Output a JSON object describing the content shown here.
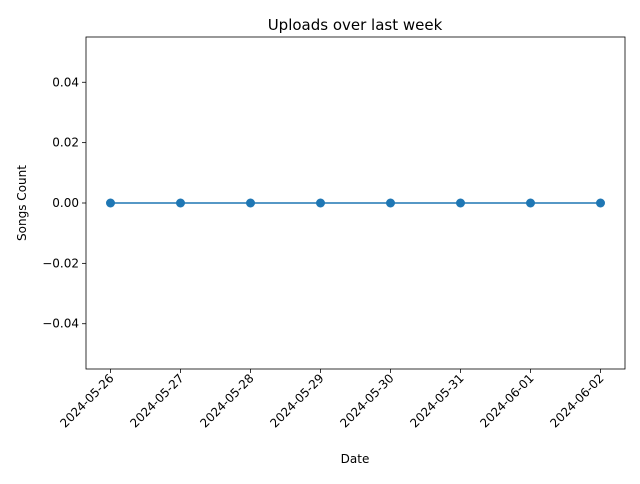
{
  "chart_data": {
    "type": "line",
    "title": "Uploads over last week",
    "xlabel": "Date",
    "ylabel": "Songs Count",
    "x": [
      "2024-05-26",
      "2024-05-27",
      "2024-05-28",
      "2024-05-29",
      "2024-05-30",
      "2024-05-31",
      "2024-06-01",
      "2024-06-02"
    ],
    "series": [
      {
        "values": [
          0,
          0,
          0,
          0,
          0,
          0,
          0,
          0
        ],
        "color": "#1f77b4",
        "marker": "circle"
      }
    ],
    "ylim": [
      -0.055,
      0.055
    ],
    "yticks": [
      -0.04,
      -0.02,
      0.0,
      0.02,
      0.04
    ],
    "ytick_labels": [
      "−0.04",
      "−0.02",
      "0.00",
      "0.02",
      "0.04"
    ],
    "grid": false,
    "legend": false
  }
}
